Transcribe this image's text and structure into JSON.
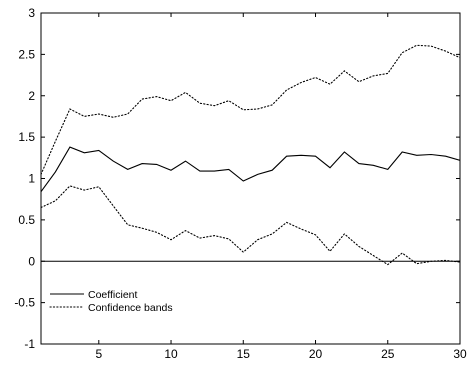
{
  "chart_data": {
    "type": "line",
    "title": "",
    "xlabel": "",
    "ylabel": "",
    "xlim": [
      1,
      30
    ],
    "ylim": [
      -1,
      3
    ],
    "xticks": [
      5,
      10,
      15,
      20,
      25,
      30
    ],
    "xtick_labels": [
      "5",
      "10",
      "15",
      "20",
      "25",
      "30"
    ],
    "yticks": [
      -1,
      -0.5,
      0,
      0.5,
      1,
      1.5,
      2,
      2.5,
      3
    ],
    "ytick_labels": [
      "-1",
      "-0.5",
      "0",
      "0.5",
      "1",
      "1.5",
      "2",
      "2.5",
      "3"
    ],
    "grid": false,
    "legend_position": "bottom-left",
    "reference_line_y": 0,
    "x": [
      1,
      2,
      3,
      4,
      5,
      6,
      7,
      8,
      9,
      10,
      11,
      12,
      13,
      14,
      15,
      16,
      17,
      18,
      19,
      20,
      21,
      22,
      23,
      24,
      25,
      26,
      27,
      28,
      29,
      30
    ],
    "series": [
      {
        "name": "Coefficient",
        "style": "solid",
        "color": "#000000",
        "values": [
          0.84,
          1.08,
          1.38,
          1.31,
          1.34,
          1.21,
          1.11,
          1.18,
          1.17,
          1.1,
          1.21,
          1.09,
          1.09,
          1.11,
          0.97,
          1.05,
          1.1,
          1.27,
          1.28,
          1.27,
          1.13,
          1.32,
          1.18,
          1.16,
          1.11,
          1.32,
          1.28,
          1.29,
          1.27,
          1.22
        ]
      },
      {
        "name": "Confidence bands",
        "style": "dotted",
        "color": "#000000",
        "values": [
          1.05,
          1.45,
          1.84,
          1.75,
          1.78,
          1.74,
          1.78,
          1.96,
          1.99,
          1.94,
          2.04,
          1.91,
          1.88,
          1.94,
          1.83,
          1.84,
          1.89,
          2.07,
          2.16,
          2.22,
          2.14,
          2.3,
          2.17,
          2.24,
          2.27,
          2.52,
          2.61,
          2.6,
          2.54,
          2.46
        ]
      },
      {
        "name": "",
        "style": "dotted",
        "color": "#000000",
        "values": [
          0.65,
          0.73,
          0.91,
          0.86,
          0.9,
          0.67,
          0.44,
          0.4,
          0.35,
          0.26,
          0.37,
          0.28,
          0.31,
          0.27,
          0.11,
          0.26,
          0.33,
          0.47,
          0.39,
          0.32,
          0.12,
          0.33,
          0.18,
          0.07,
          -0.04,
          0.1,
          -0.03,
          0.0,
          0.01,
          -0.01
        ]
      }
    ]
  }
}
